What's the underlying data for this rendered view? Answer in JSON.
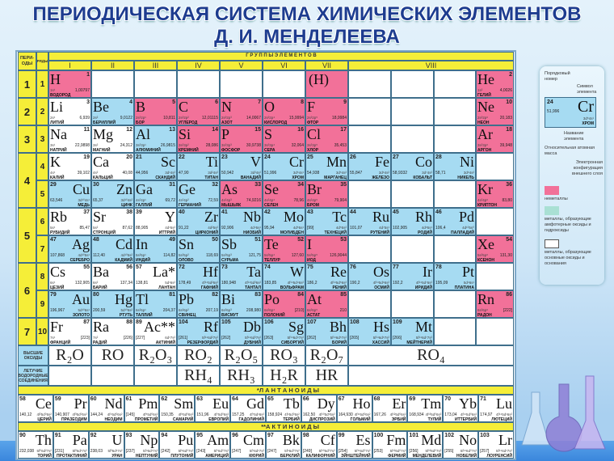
{
  "title": {
    "line1": "ПЕРИОДИЧЕСКАЯ СИСТЕМА ХИМИЧЕСКИХ ЭЛЕМЕНТОВ",
    "line2": "Д. И. МЕНДЕЛЕЕВА"
  },
  "headers": {
    "periods": "ПЕРИ-ОДЫ",
    "rows": "РЯДЫ",
    "groups": "Г Р У П П Ы     Э Л Е М Е Н Т О В",
    "group_numerals": [
      "I",
      "II",
      "III",
      "IV",
      "V",
      "VI",
      "VII",
      "VIII"
    ],
    "oxides": "ВЫСШИЕ ОКСИДЫ",
    "hydrides": "ЛЕТУЧИЕ ВОДОРОДНЫЕ СОЕДИНЕНИЯ",
    "lanthanides": "*Л А Н Т А Н О И Д Ы",
    "actinides": "**А К Т И Н О И Д Ы"
  },
  "colors": {
    "nonmetal": "#f27199",
    "amphoteric": "#a6dbf2",
    "basic": "#ffffff",
    "header": "#f5ee38"
  },
  "periods": [
    "1",
    "2",
    "3",
    "4",
    "5",
    "6",
    "7"
  ],
  "row_numbers": [
    "1",
    "2",
    "3",
    "4",
    "5",
    "6",
    "7",
    "8",
    "9",
    "10"
  ],
  "table_rows": [
    [
      [
        "H",
        "1",
        "1,00797",
        "1s¹",
        "ВОДОРОД",
        "p",
        "L"
      ],
      null,
      null,
      null,
      null,
      null,
      [
        "(H)",
        "",
        "",
        "",
        "",
        "p",
        "L"
      ],
      null,
      null,
      null,
      [
        "He",
        "2",
        "4,0026",
        "1s²",
        "ГЕЛИЙ",
        "p",
        "L"
      ]
    ],
    [
      [
        "Li",
        "3",
        "6,939",
        "2s¹",
        "ЛИТИЙ",
        "w",
        "L"
      ],
      [
        "Be",
        "4",
        "9,0122",
        "2s²",
        "БЕРИЛЛИЙ",
        "b",
        "L"
      ],
      [
        "B",
        "5",
        "10,811",
        "2s²2p¹",
        "БОР",
        "p",
        "L"
      ],
      [
        "C",
        "6",
        "12,01115",
        "2s²2p²",
        "УГЛЕРОД",
        "p",
        "L"
      ],
      [
        "N",
        "7",
        "14,0067",
        "2s²2p³",
        "АЗОТ",
        "p",
        "L"
      ],
      [
        "O",
        "8",
        "15,9994",
        "2s²2p⁴",
        "КИСЛОРОД",
        "p",
        "L"
      ],
      [
        "F",
        "9",
        "18,9984",
        "2s²2p⁵",
        "ФТОР",
        "p",
        "L"
      ],
      null,
      null,
      null,
      [
        "Ne",
        "10",
        "20,183",
        "2s²2p⁶",
        "НЕОН",
        "p",
        "L"
      ]
    ],
    [
      [
        "Na",
        "11",
        "22,9898",
        "3s¹",
        "НАТРИЙ",
        "w",
        "L"
      ],
      [
        "Mg",
        "12",
        "24,312",
        "3s²",
        "МАГНИЙ",
        "w",
        "L"
      ],
      [
        "Al",
        "13",
        "26,9815",
        "3s²3p¹",
        "АЛЮМИНИЙ",
        "b",
        "L"
      ],
      [
        "Si",
        "14",
        "28,086",
        "3s²3p²",
        "КРЕМНИЙ",
        "p",
        "L"
      ],
      [
        "P",
        "15",
        "30,9738",
        "3s²3p³",
        "ФОСФОР",
        "p",
        "L"
      ],
      [
        "S",
        "16",
        "32,064",
        "3s²3p⁴",
        "СЕРА",
        "p",
        "L"
      ],
      [
        "Cl",
        "17",
        "35,453",
        "3s²3p⁵",
        "ХЛОР",
        "p",
        "L"
      ],
      null,
      null,
      null,
      [
        "Ar",
        "18",
        "39,948",
        "3s²3p⁶",
        "АРГОН",
        "p",
        "L"
      ]
    ],
    [
      [
        "K",
        "19",
        "39,102",
        "4s¹",
        "КАЛИЙ",
        "w",
        "L"
      ],
      [
        "Ca",
        "20",
        "40,08",
        "4s²",
        "КАЛЬЦИЙ",
        "w",
        "L"
      ],
      [
        "Sc",
        "21",
        "44,956",
        "3d¹4s²",
        "СКАНДИЙ",
        "b",
        "R"
      ],
      [
        "Ti",
        "22",
        "47,90",
        "3d²4s²",
        "ТИТАН",
        "b",
        "R"
      ],
      [
        "V",
        "23",
        "50,942",
        "3d³4s²",
        "ВАНАДИЙ",
        "b",
        "R"
      ],
      [
        "Cr",
        "24",
        "51,996",
        "3d⁵4s¹",
        "ХРОМ",
        "b",
        "R"
      ],
      [
        "Mn",
        "25",
        "54,938",
        "3d⁵4s²",
        "МАРГАНЕЦ",
        "b",
        "R"
      ],
      [
        "Fe",
        "26",
        "55,847",
        "3d⁶4s²",
        "ЖЕЛЕЗО",
        "b",
        "R"
      ],
      [
        "Co",
        "27",
        "58,9332",
        "3d⁷4s²",
        "КОБАЛЬТ",
        "b",
        "R"
      ],
      [
        "Ni",
        "28",
        "58,71",
        "3d⁸4s²",
        "НИКЕЛЬ",
        "b",
        "R"
      ],
      null
    ],
    [
      [
        "Cu",
        "29",
        "63,546",
        "3d¹⁰4s¹",
        "МЕДЬ",
        "b",
        "R"
      ],
      [
        "Zn",
        "30",
        "65,37",
        "3d¹⁰4s²",
        "ЦИНК",
        "b",
        "R"
      ],
      [
        "Ga",
        "31",
        "69,72",
        "4s²4p¹",
        "ГАЛЛИЙ",
        "b",
        "L"
      ],
      [
        "Ge",
        "32",
        "72,59",
        "4s²4p²",
        "ГЕРМАНИЙ",
        "b",
        "L"
      ],
      [
        "As",
        "33",
        "74,9216",
        "4s²4p³",
        "МЫШЬЯК",
        "p",
        "L"
      ],
      [
        "Se",
        "34",
        "78,96",
        "4s²4p⁴",
        "СЕЛЕН",
        "p",
        "L"
      ],
      [
        "Br",
        "35",
        "79,904",
        "4s²4p⁵",
        "БРОМ",
        "p",
        "L"
      ],
      null,
      null,
      null,
      [
        "Kr",
        "36",
        "83,80",
        "4s²4p⁶",
        "КРИПТОН",
        "p",
        "L"
      ]
    ],
    [
      [
        "Rb",
        "37",
        "85,47",
        "5s¹",
        "РУБИДИЙ",
        "w",
        "L"
      ],
      [
        "Sr",
        "38",
        "87,62",
        "5s²",
        "СТРОНЦИЙ",
        "w",
        "L"
      ],
      [
        "Y",
        "39",
        "88,905",
        "4d¹5s²",
        "ИТТРИЙ",
        "w",
        "R"
      ],
      [
        "Zr",
        "40",
        "91,22",
        "4d²5s²",
        "ЦИРКОНИЙ",
        "b",
        "R"
      ],
      [
        "Nb",
        "41",
        "92,906",
        "4d⁴5s¹",
        "НИОБИЙ",
        "b",
        "R"
      ],
      [
        "Mo",
        "42",
        "95,94",
        "4d⁵5s¹",
        "МОЛИБДЕН",
        "b",
        "R"
      ],
      [
        "Tc",
        "43",
        "[99]",
        "4d⁵5s²",
        "ТЕХНЕЦИЙ",
        "b",
        "R"
      ],
      [
        "Ru",
        "44",
        "101,07",
        "4d⁷5s¹",
        "РУТЕНИЙ",
        "b",
        "R"
      ],
      [
        "Rh",
        "45",
        "102,905",
        "4d⁸5s¹",
        "РОДИЙ",
        "b",
        "R"
      ],
      [
        "Pd",
        "46",
        "106,4",
        "4d¹⁰5s⁰",
        "ПАЛЛАДИЙ",
        "b",
        "R"
      ],
      null
    ],
    [
      [
        "Ag",
        "47",
        "107,868",
        "4d¹⁰5s¹",
        "СЕРЕБРО",
        "b",
        "R"
      ],
      [
        "Cd",
        "48",
        "112,40",
        "4d¹⁰5s²",
        "КАДМИЙ",
        "b",
        "R"
      ],
      [
        "In",
        "49",
        "114,82",
        "5s²5p¹",
        "ИНДИЙ",
        "b",
        "L"
      ],
      [
        "Sn",
        "50",
        "118,69",
        "5s²5p²",
        "ОЛОВО",
        "b",
        "L"
      ],
      [
        "Sb",
        "51",
        "121,75",
        "5s²5p³",
        "СУРЬМА",
        "b",
        "L"
      ],
      [
        "Te",
        "52",
        "127,60",
        "5s²5p⁴",
        "ТЕЛЛУР",
        "p",
        "L"
      ],
      [
        "I",
        "53",
        "126,9044",
        "5s²5p⁵",
        "ИОД",
        "p",
        "L"
      ],
      null,
      null,
      null,
      [
        "Xe",
        "54",
        "131,30",
        "5s²5p⁶",
        "КСЕНОН",
        "p",
        "L"
      ]
    ],
    [
      [
        "Cs",
        "55",
        "132,905",
        "6s¹",
        "ЦЕЗИЙ",
        "w",
        "L"
      ],
      [
        "Ba",
        "56",
        "137,34",
        "6s²",
        "БАРИЙ",
        "w",
        "L"
      ],
      [
        "La*",
        "57",
        "138,81",
        "5d¹6s²",
        "ЛАНТАН",
        "w",
        "R"
      ],
      [
        "Hf",
        "72",
        "178,49",
        "4f¹⁴5d²6s²",
        "ГАФНИЙ",
        "b",
        "R"
      ],
      [
        "Ta",
        "73",
        "180,948",
        "4f¹⁴5d³6s²",
        "ТАНТАЛ",
        "b",
        "R"
      ],
      [
        "W",
        "74",
        "183,85",
        "4f¹⁴5d⁴6s²",
        "ВОЛЬФРАМ",
        "b",
        "R"
      ],
      [
        "Re",
        "75",
        "186,2",
        "4f¹⁴5d⁵6s²",
        "РЕНИЙ",
        "b",
        "R"
      ],
      [
        "Os",
        "76",
        "190,2",
        "4f¹⁴5d⁶6s²",
        "ОСМИЙ",
        "b",
        "R"
      ],
      [
        "Ir",
        "77",
        "192,2",
        "4f¹⁴5d⁷6s²",
        "ИРИДИЙ",
        "b",
        "R"
      ],
      [
        "Pt",
        "78",
        "195,09",
        "5d⁹6s¹",
        "ПЛАТИНА",
        "b",
        "R"
      ],
      null
    ],
    [
      [
        "Au",
        "79",
        "196,967",
        "5d¹⁰6s¹",
        "ЗОЛОТО",
        "b",
        "R"
      ],
      [
        "Hg",
        "80",
        "200,59",
        "5d¹⁰6s²",
        "РТУТЬ",
        "b",
        "R"
      ],
      [
        "Tl",
        "81",
        "204,37",
        "6s²6p¹",
        "ТАЛЛИЙ",
        "b",
        "L"
      ],
      [
        "Pb",
        "82",
        "207,19",
        "6s²6p²",
        "СВИНЕЦ",
        "b",
        "L"
      ],
      [
        "Bi",
        "83",
        "208,980",
        "6s²6p³",
        "ВИСМУТ",
        "b",
        "L"
      ],
      [
        "Po",
        "84",
        "[210]",
        "6s²6p⁴",
        "ПОЛОНИЙ",
        "p",
        "L"
      ],
      [
        "At",
        "85",
        "210",
        "6s²6p⁵",
        "АСТАТ",
        "p",
        "L"
      ],
      null,
      null,
      null,
      [
        "Rn",
        "86",
        "[222]",
        "6s²6p⁶",
        "РАДОН",
        "p",
        "L"
      ]
    ],
    [
      [
        "Fr",
        "87",
        "[223]",
        "7s¹",
        "ФРАНЦИЙ",
        "w",
        "L"
      ],
      [
        "Ra",
        "88",
        "[226]",
        "7s²",
        "РАДИЙ",
        "w",
        "L"
      ],
      [
        "Ac**",
        "89",
        "[227]",
        "6d¹7s²",
        "АКТИНИЙ",
        "w",
        "R"
      ],
      [
        "Rf",
        "104",
        "[261]",
        "5f¹⁴6d²7s²",
        "РЕЗЕРФОРДИЙ",
        "b",
        "R"
      ],
      [
        "Db",
        "105",
        "[262]",
        "5f¹⁴6d³7s²",
        "ДУБНИЙ",
        "b",
        "R"
      ],
      [
        "Sg",
        "106",
        "[263]",
        "5f¹⁴6d⁴7s²",
        "СИБОРГИЙ",
        "b",
        "R"
      ],
      [
        "Bh",
        "107",
        "[262]",
        "5f¹⁴6d⁵7s²",
        "БОРИЙ",
        "b",
        "R"
      ],
      [
        "Hs",
        "108",
        "[265]",
        "5f¹⁴6d⁶7s²",
        "ХАССИЙ",
        "b",
        "R"
      ],
      [
        "Mt",
        "109",
        "[266]",
        "5f¹⁴6d⁷7s²",
        "МЕЙТНЕРИЙ",
        "b",
        "R"
      ],
      null,
      null
    ]
  ],
  "oxides": [
    "R₂O",
    "RO",
    "R₂O₃",
    "RO₂",
    "R₂O₅",
    "RO₃",
    "R₂O₇",
    "RO₄"
  ],
  "hydrides": [
    "",
    "",
    "",
    "RH₄",
    "RH₃",
    "H₂R",
    "HR",
    ""
  ],
  "lanthanides": [
    [
      "Ce",
      "58",
      "140,12",
      "4f²5d⁰6s²",
      "ЦЕРИЙ"
    ],
    [
      "Pr",
      "59",
      "140,907",
      "4f³5d⁰6s²",
      "ПРАЗЕОДИМ"
    ],
    [
      "Nd",
      "60",
      "144,24",
      "4f⁴5d⁰6s²",
      "НЕОДИМ"
    ],
    [
      "Pm",
      "61",
      "[145]",
      "4f⁵5d⁰6s²",
      "ПРОМЕТИЙ"
    ],
    [
      "Sm",
      "62",
      "150,35",
      "4f⁶5d⁰6s²",
      "САМАРИЙ"
    ],
    [
      "Eu",
      "63",
      "151,96",
      "4f⁷5d⁰6s²",
      "ЕВРОПИЙ"
    ],
    [
      "Gd",
      "64",
      "157,25",
      "4f⁷5d¹6s²",
      "ГАДОЛИНИЙ"
    ],
    [
      "Tb",
      "65",
      "158,924",
      "4f⁹5d⁰6s²",
      "ТЕРБИЙ"
    ],
    [
      "Dy",
      "66",
      "162,50",
      "4f¹⁰5d⁰6s²",
      "ДИСПРОЗИЙ"
    ],
    [
      "Ho",
      "67",
      "164,930",
      "4f¹¹5d⁰6s²",
      "ГОЛЬМИЙ"
    ],
    [
      "Er",
      "68",
      "167,26",
      "4f¹²5d⁰6s²",
      "ЭРБИЙ"
    ],
    [
      "Tm",
      "69",
      "168,934",
      "4f¹³5d⁰6s²",
      "ТУЛИЙ"
    ],
    [
      "Yb",
      "70",
      "173,04",
      "4f¹⁴5d⁰6s²",
      "ИТТЕРБИЙ"
    ],
    [
      "Lu",
      "71",
      "174,97",
      "4f¹⁴5d¹6s²",
      "ЛЮТЕЦИЙ"
    ]
  ],
  "actinides": [
    [
      "Th",
      "90",
      "232,038",
      "5f⁰6d²7s²",
      "ТОРИЙ"
    ],
    [
      "Pa",
      "91",
      "[231]",
      "5f²6d¹7s²",
      "ПРОТАКТИНИЙ"
    ],
    [
      "U",
      "92",
      "238,03",
      "5f³6d¹7s²",
      "УРАН"
    ],
    [
      "Np",
      "93",
      "[237]",
      "5f⁴6d¹7s²",
      "НЕПТУНИЙ"
    ],
    [
      "Pu",
      "94",
      "[242]",
      "5f⁶6d⁰7s²",
      "ПЛУТОНИЙ"
    ],
    [
      "Am",
      "95",
      "[243]",
      "5f⁷6d⁰7s²",
      "АМЕРИЦИЙ"
    ],
    [
      "Cm",
      "96",
      "[247]",
      "5f⁷6d¹7s²",
      "КЮРИЙ"
    ],
    [
      "Bk",
      "97",
      "[247]",
      "5f⁹6d⁰7s²",
      "БЕРКЛИЙ"
    ],
    [
      "Cf",
      "98",
      "[249]",
      "5f¹⁰6d⁰7s²",
      "КАЛИФОРНИЙ"
    ],
    [
      "Es",
      "99",
      "[254]",
      "5f¹¹6d⁰7s²",
      "ЭЙНШТЕЙНИЙ"
    ],
    [
      "Fm",
      "100",
      "[253]",
      "5f¹²6d⁰7s²",
      "ФЕРМИЙ"
    ],
    [
      "Md",
      "101",
      "[256]",
      "5f¹³6d⁰7s²",
      "МЕНДЕЛЕВИЙ"
    ],
    [
      "No",
      "102",
      "[255]",
      "5f¹⁴6d⁰7s²",
      "НОБЕЛИЙ"
    ],
    [
      "Lr",
      "103",
      "[257]",
      "5f¹⁴6d¹7s²",
      "ЛОУРЕНСИЙ"
    ]
  ],
  "legend": {
    "order_number_label": "Порядковый номер",
    "symbol_label": "Символ элемента",
    "name_label": "Название элемента",
    "mass_label": "Относительная атомная масса",
    "config_label": "Электронная конфигурация внешнего слоя",
    "example": {
      "symbol": "Cr",
      "number": "24",
      "mass": "51,996",
      "config": "3d⁵4s¹",
      "name": "ХРОМ"
    },
    "nonmetals": "неметаллы",
    "amphoteric": "металлы, образующие амфотерные оксиды и гидроксиды",
    "basic": "металлы, образующие основные оксиды и основания"
  }
}
